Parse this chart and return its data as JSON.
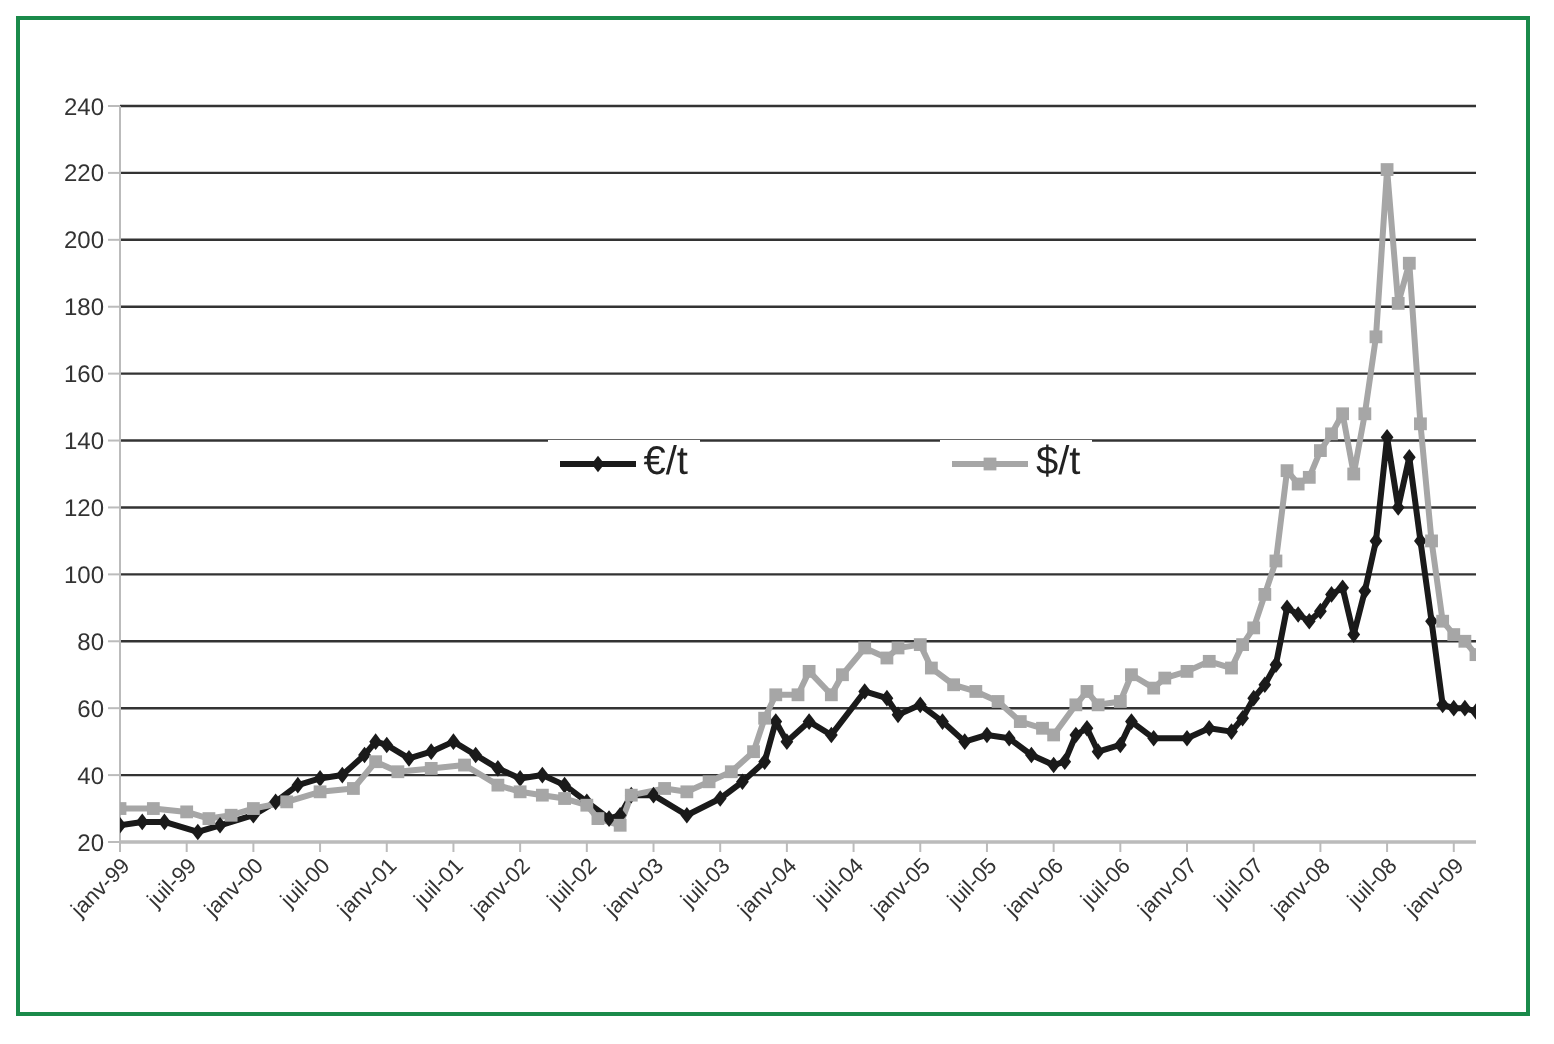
{
  "chart_data": {
    "type": "line",
    "xlim": [
      "1999-01",
      "2009-03"
    ],
    "xticks": [
      {
        "value": "1999-01",
        "label": "janv-99"
      },
      {
        "value": "1999-07",
        "label": "juil-99"
      },
      {
        "value": "2000-01",
        "label": "janv-00"
      },
      {
        "value": "2000-07",
        "label": "juil-00"
      },
      {
        "value": "2001-01",
        "label": "janv-01"
      },
      {
        "value": "2001-07",
        "label": "juil-01"
      },
      {
        "value": "2002-01",
        "label": "janv-02"
      },
      {
        "value": "2002-07",
        "label": "juil-02"
      },
      {
        "value": "2003-01",
        "label": "janv-03"
      },
      {
        "value": "2003-07",
        "label": "juil-03"
      },
      {
        "value": "2004-01",
        "label": "janv-04"
      },
      {
        "value": "2004-07",
        "label": "juil-04"
      },
      {
        "value": "2005-01",
        "label": "janv-05"
      },
      {
        "value": "2005-07",
        "label": "juil-05"
      },
      {
        "value": "2006-01",
        "label": "janv-06"
      },
      {
        "value": "2006-07",
        "label": "juil-06"
      },
      {
        "value": "2007-01",
        "label": "janv-07"
      },
      {
        "value": "2007-07",
        "label": "juil-07"
      },
      {
        "value": "2008-01",
        "label": "janv-08"
      },
      {
        "value": "2008-07",
        "label": "juil-08"
      },
      {
        "value": "2009-01",
        "label": "janv-09"
      }
    ],
    "ylim": [
      20,
      240
    ],
    "yticks": [
      20,
      40,
      60,
      80,
      100,
      120,
      140,
      160,
      180,
      200,
      220,
      240
    ],
    "grid": "y",
    "legend": "top",
    "line_style": "solid",
    "series": [
      {
        "name": "€/t",
        "color": "#1a1a1a",
        "marker": "diamond",
        "x": [
          "1999-01",
          "1999-03",
          "1999-05",
          "1999-08",
          "1999-10",
          "2000-01",
          "2000-03",
          "2000-05",
          "2000-07",
          "2000-09",
          "2000-11",
          "2000-12",
          "2001-01",
          "2001-03",
          "2001-05",
          "2001-07",
          "2001-09",
          "2001-11",
          "2002-01",
          "2002-03",
          "2002-05",
          "2002-07",
          "2002-09",
          "2002-10",
          "2002-11",
          "2003-01",
          "2003-04",
          "2003-07",
          "2003-09",
          "2003-11",
          "2003-12",
          "2004-01",
          "2004-03",
          "2004-05",
          "2004-08",
          "2004-10",
          "2004-11",
          "2005-01",
          "2005-03",
          "2005-05",
          "2005-07",
          "2005-09",
          "2005-11",
          "2006-01",
          "2006-02",
          "2006-03",
          "2006-04",
          "2006-05",
          "2006-07",
          "2006-08",
          "2006-10",
          "2007-01",
          "2007-03",
          "2007-05",
          "2007-06",
          "2007-07",
          "2007-08",
          "2007-09",
          "2007-10",
          "2007-11",
          "2007-12",
          "2008-01",
          "2008-02",
          "2008-03",
          "2008-04",
          "2008-05",
          "2008-06",
          "2008-07",
          "2008-08",
          "2008-09",
          "2008-10",
          "2008-11",
          "2008-12",
          "2009-01",
          "2009-02",
          "2009-03"
        ],
        "values": [
          25,
          26,
          26,
          23,
          25,
          28,
          32,
          37,
          39,
          40,
          46,
          50,
          49,
          45,
          47,
          50,
          46,
          42,
          39,
          40,
          37,
          32,
          27,
          28,
          34,
          34,
          28,
          33,
          38,
          44,
          56,
          50,
          56,
          52,
          65,
          63,
          58,
          61,
          56,
          50,
          52,
          51,
          46,
          43,
          44,
          52,
          54,
          47,
          49,
          56,
          51,
          51,
          54,
          53,
          57,
          63,
          67,
          73,
          90,
          88,
          86,
          89,
          94,
          96,
          82,
          95,
          110,
          141,
          120,
          135,
          110,
          86,
          61,
          60,
          60,
          59
        ]
      },
      {
        "name": "$/t",
        "color": "#a6a6a6",
        "marker": "square",
        "x": [
          "1999-01",
          "1999-04",
          "1999-07",
          "1999-09",
          "1999-11",
          "2000-01",
          "2000-04",
          "2000-07",
          "2000-10",
          "2000-12",
          "2001-02",
          "2001-05",
          "2001-08",
          "2001-11",
          "2002-01",
          "2002-03",
          "2002-05",
          "2002-07",
          "2002-08",
          "2002-10",
          "2002-11",
          "2003-02",
          "2003-04",
          "2003-06",
          "2003-08",
          "2003-10",
          "2003-11",
          "2003-12",
          "2004-02",
          "2004-03",
          "2004-05",
          "2004-06",
          "2004-08",
          "2004-10",
          "2004-11",
          "2005-01",
          "2005-02",
          "2005-04",
          "2005-06",
          "2005-08",
          "2005-10",
          "2005-12",
          "2006-01",
          "2006-03",
          "2006-04",
          "2006-05",
          "2006-07",
          "2006-08",
          "2006-10",
          "2006-11",
          "2007-01",
          "2007-03",
          "2007-05",
          "2007-06",
          "2007-07",
          "2007-08",
          "2007-09",
          "2007-10",
          "2007-11",
          "2007-12",
          "2008-01",
          "2008-02",
          "2008-03",
          "2008-04",
          "2008-05",
          "2008-06",
          "2008-07",
          "2008-08",
          "2008-09",
          "2008-10",
          "2008-11",
          "2008-12",
          "2009-01",
          "2009-02",
          "2009-03"
        ],
        "values": [
          30,
          30,
          29,
          27,
          28,
          30,
          32,
          35,
          36,
          44,
          41,
          42,
          43,
          37,
          35,
          34,
          33,
          31,
          27,
          25,
          34,
          36,
          35,
          38,
          41,
          47,
          57,
          64,
          64,
          71,
          64,
          70,
          78,
          75,
          78,
          79,
          72,
          67,
          65,
          62,
          56,
          54,
          52,
          61,
          65,
          61,
          62,
          70,
          66,
          69,
          71,
          74,
          72,
          79,
          84,
          94,
          104,
          131,
          127,
          129,
          137,
          142,
          148,
          130,
          148,
          171,
          221,
          181,
          193,
          145,
          110,
          86,
          82,
          80,
          76
        ]
      }
    ]
  }
}
